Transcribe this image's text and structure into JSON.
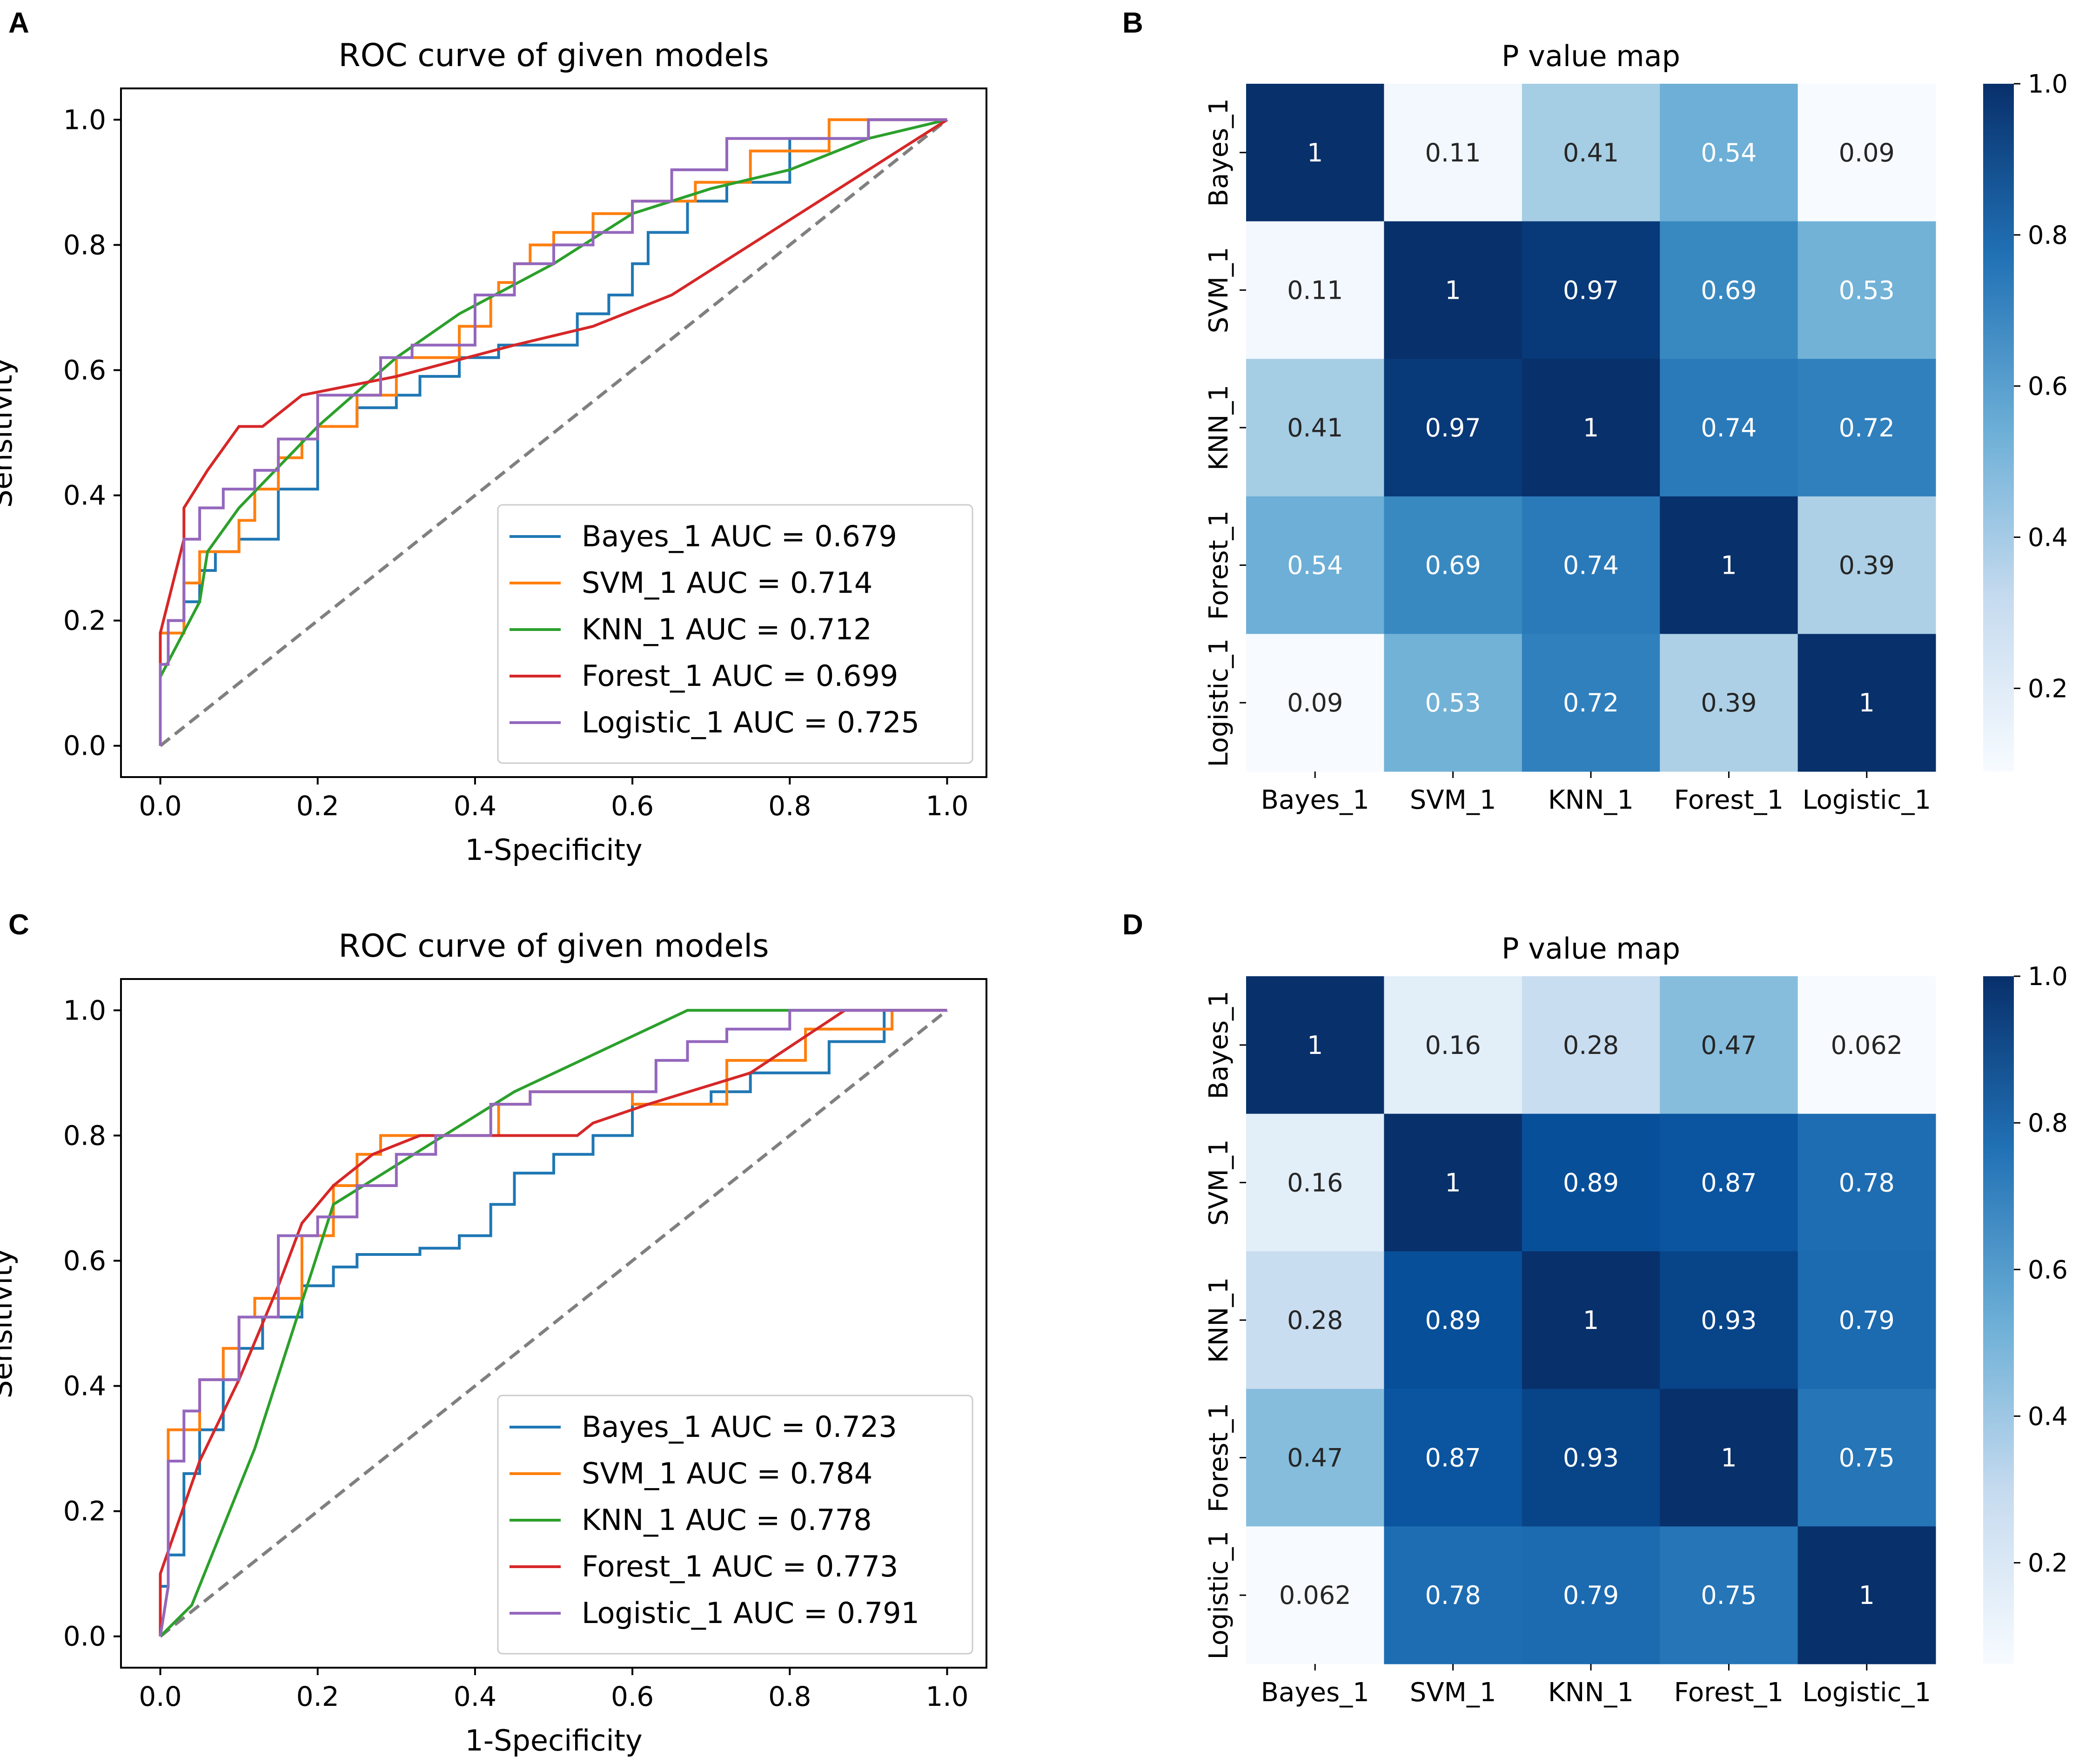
{
  "colors": {
    "Bayes_1": "#1f77b4",
    "SVM_1": "#ff7f0e",
    "KNN_1": "#2ca02c",
    "Forest_1": "#d62728",
    "Logistic_1": "#9467bd",
    "diagonal": "#808080",
    "heat_low": "#f7fbff",
    "heat_mid1": "#c6dbef",
    "heat_mid2": "#6baed6",
    "heat_mid3": "#2171b5",
    "heat_high": "#08306b",
    "text_dark": "#262626",
    "text_light": "#ffffff"
  },
  "chart_data": [
    {
      "panel": "A",
      "type": "line",
      "title": "ROC curve of given models",
      "xlabel": "1-Specificity",
      "ylabel": "Sensitivity",
      "xlim": [
        -0.05,
        1.05
      ],
      "ylim": [
        -0.05,
        1.05
      ],
      "xticks": [
        0.0,
        0.2,
        0.4,
        0.6,
        0.8,
        1.0
      ],
      "yticks": [
        0.0,
        0.2,
        0.4,
        0.6,
        0.8,
        1.0
      ],
      "tick_labels": [
        "0.0",
        "0.2",
        "0.4",
        "0.6",
        "0.8",
        "1.0"
      ],
      "legend_position": "lower-right",
      "grid": false,
      "series": [
        {
          "name": "Bayes_1",
          "label": "Bayes_1 AUC = 0.679",
          "color_key": "Bayes_1",
          "x": [
            0,
            0,
            0.01,
            0.01,
            0.03,
            0.03,
            0.05,
            0.05,
            0.07,
            0.07,
            0.1,
            0.1,
            0.15,
            0.15,
            0.2,
            0.2,
            0.25,
            0.25,
            0.3,
            0.3,
            0.33,
            0.33,
            0.38,
            0.38,
            0.43,
            0.43,
            0.53,
            0.53,
            0.57,
            0.57,
            0.6,
            0.6,
            0.62,
            0.62,
            0.67,
            0.67,
            0.72,
            0.72,
            0.8,
            0.8,
            0.9,
            0.9,
            1.0
          ],
          "y": [
            0,
            0.18,
            0.18,
            0.2,
            0.2,
            0.23,
            0.23,
            0.28,
            0.28,
            0.31,
            0.31,
            0.33,
            0.33,
            0.41,
            0.41,
            0.51,
            0.51,
            0.54,
            0.54,
            0.56,
            0.56,
            0.59,
            0.59,
            0.62,
            0.62,
            0.64,
            0.64,
            0.69,
            0.69,
            0.72,
            0.72,
            0.77,
            0.77,
            0.82,
            0.82,
            0.87,
            0.87,
            0.9,
            0.9,
            0.97,
            0.97,
            1.0,
            1.0
          ]
        },
        {
          "name": "SVM_1",
          "label": "SVM_1 AUC = 0.714",
          "color_key": "SVM_1",
          "x": [
            0,
            0,
            0.03,
            0.03,
            0.05,
            0.05,
            0.1,
            0.1,
            0.12,
            0.12,
            0.15,
            0.15,
            0.18,
            0.18,
            0.2,
            0.2,
            0.25,
            0.25,
            0.3,
            0.3,
            0.38,
            0.38,
            0.42,
            0.42,
            0.43,
            0.43,
            0.45,
            0.45,
            0.47,
            0.47,
            0.5,
            0.5,
            0.55,
            0.55,
            0.6,
            0.6,
            0.68,
            0.68,
            0.75,
            0.75,
            0.85,
            0.85,
            1.0
          ],
          "y": [
            0,
            0.18,
            0.18,
            0.26,
            0.26,
            0.31,
            0.31,
            0.36,
            0.36,
            0.41,
            0.41,
            0.46,
            0.46,
            0.49,
            0.49,
            0.51,
            0.51,
            0.56,
            0.56,
            0.62,
            0.62,
            0.67,
            0.67,
            0.72,
            0.72,
            0.74,
            0.74,
            0.77,
            0.77,
            0.8,
            0.8,
            0.82,
            0.82,
            0.85,
            0.85,
            0.87,
            0.87,
            0.9,
            0.9,
            0.95,
            0.95,
            1.0,
            1.0
          ]
        },
        {
          "name": "KNN_1",
          "label": "KNN_1 AUC = 0.712",
          "color_key": "KNN_1",
          "x": [
            0,
            0,
            0.05,
            0.06,
            0.1,
            0.2,
            0.3,
            0.38,
            0.5,
            0.6,
            0.7,
            0.8,
            0.9,
            1.0
          ],
          "y": [
            0,
            0.11,
            0.23,
            0.31,
            0.38,
            0.51,
            0.62,
            0.69,
            0.77,
            0.85,
            0.89,
            0.92,
            0.97,
            1.0
          ]
        },
        {
          "name": "Forest_1",
          "label": "Forest_1 AUC = 0.699",
          "color_key": "Forest_1",
          "x": [
            0,
            0,
            0.02,
            0.03,
            0.03,
            0.06,
            0.1,
            0.13,
            0.18,
            0.3,
            0.45,
            0.55,
            0.65,
            1.0
          ],
          "y": [
            0,
            0.18,
            0.28,
            0.33,
            0.38,
            0.44,
            0.51,
            0.51,
            0.56,
            0.59,
            0.64,
            0.67,
            0.72,
            1.0
          ]
        },
        {
          "name": "Logistic_1",
          "label": "Logistic_1 AUC = 0.725",
          "color_key": "Logistic_1",
          "x": [
            0,
            0,
            0.01,
            0.01,
            0.03,
            0.03,
            0.05,
            0.05,
            0.08,
            0.08,
            0.12,
            0.12,
            0.15,
            0.15,
            0.2,
            0.2,
            0.28,
            0.28,
            0.32,
            0.32,
            0.4,
            0.4,
            0.45,
            0.45,
            0.5,
            0.5,
            0.55,
            0.55,
            0.6,
            0.6,
            0.65,
            0.65,
            0.72,
            0.72,
            0.9,
            0.9,
            1.0
          ],
          "y": [
            0,
            0.13,
            0.13,
            0.2,
            0.2,
            0.33,
            0.33,
            0.38,
            0.38,
            0.41,
            0.41,
            0.44,
            0.44,
            0.49,
            0.49,
            0.56,
            0.56,
            0.62,
            0.62,
            0.64,
            0.64,
            0.72,
            0.72,
            0.77,
            0.77,
            0.8,
            0.8,
            0.82,
            0.82,
            0.87,
            0.87,
            0.92,
            0.92,
            0.97,
            0.97,
            1.0,
            1.0
          ]
        }
      ],
      "reference_line": {
        "x": [
          0,
          1
        ],
        "y": [
          0,
          1
        ],
        "style": "dashed"
      }
    },
    {
      "panel": "B",
      "type": "heatmap",
      "title": "P value map",
      "labels": [
        "Bayes_1",
        "SVM_1",
        "KNN_1",
        "Forest_1",
        "Logistic_1"
      ],
      "values": [
        [
          1,
          0.11,
          0.41,
          0.54,
          0.09
        ],
        [
          0.11,
          1,
          0.97,
          0.69,
          0.53
        ],
        [
          0.41,
          0.97,
          1,
          0.74,
          0.72
        ],
        [
          0.54,
          0.69,
          0.74,
          1,
          0.39
        ],
        [
          0.09,
          0.53,
          0.72,
          0.39,
          1
        ]
      ],
      "value_labels": [
        [
          "1",
          "0.11",
          "0.41",
          "0.54",
          "0.09"
        ],
        [
          "0.11",
          "1",
          "0.97",
          "0.69",
          "0.53"
        ],
        [
          "0.41",
          "0.97",
          "1",
          "0.74",
          "0.72"
        ],
        [
          "0.54",
          "0.69",
          "0.74",
          "1",
          "0.39"
        ],
        [
          "0.09",
          "0.53",
          "0.72",
          "0.39",
          "1"
        ]
      ],
      "colorbar_range": [
        0.09,
        1.0
      ],
      "colorbar_ticks": [
        0.2,
        0.4,
        0.6,
        0.8,
        1.0
      ],
      "colorbar_tick_labels": [
        "0.2",
        "0.4",
        "0.6",
        "0.8",
        "1.0"
      ],
      "colormap": "Blues"
    },
    {
      "panel": "C",
      "type": "line",
      "title": "ROC curve of given models",
      "xlabel": "1-Specificity",
      "ylabel": "Sensitivity",
      "xlim": [
        -0.05,
        1.05
      ],
      "ylim": [
        -0.05,
        1.05
      ],
      "xticks": [
        0.0,
        0.2,
        0.4,
        0.6,
        0.8,
        1.0
      ],
      "yticks": [
        0.0,
        0.2,
        0.4,
        0.6,
        0.8,
        1.0
      ],
      "tick_labels": [
        "0.0",
        "0.2",
        "0.4",
        "0.6",
        "0.8",
        "1.0"
      ],
      "legend_position": "lower-right",
      "grid": false,
      "series": [
        {
          "name": "Bayes_1",
          "label": "Bayes_1 AUC = 0.723",
          "color_key": "Bayes_1",
          "x": [
            0,
            0,
            0.01,
            0.01,
            0.03,
            0.03,
            0.05,
            0.05,
            0.08,
            0.08,
            0.1,
            0.1,
            0.13,
            0.13,
            0.18,
            0.18,
            0.22,
            0.22,
            0.25,
            0.25,
            0.33,
            0.33,
            0.38,
            0.38,
            0.42,
            0.42,
            0.45,
            0.45,
            0.5,
            0.5,
            0.55,
            0.55,
            0.6,
            0.6,
            0.7,
            0.7,
            0.75,
            0.75,
            0.85,
            0.85,
            0.92,
            0.92,
            1.0
          ],
          "y": [
            0,
            0.08,
            0.08,
            0.13,
            0.13,
            0.26,
            0.26,
            0.33,
            0.33,
            0.41,
            0.41,
            0.46,
            0.46,
            0.51,
            0.51,
            0.56,
            0.56,
            0.59,
            0.59,
            0.61,
            0.61,
            0.62,
            0.62,
            0.64,
            0.64,
            0.69,
            0.69,
            0.74,
            0.74,
            0.77,
            0.77,
            0.8,
            0.8,
            0.85,
            0.85,
            0.87,
            0.87,
            0.9,
            0.9,
            0.95,
            0.95,
            1.0,
            1.0
          ]
        },
        {
          "name": "SVM_1",
          "label": "SVM_1 AUC = 0.784",
          "color_key": "SVM_1",
          "x": [
            0,
            0.01,
            0.01,
            0.05,
            0.05,
            0.08,
            0.08,
            0.1,
            0.1,
            0.12,
            0.12,
            0.18,
            0.18,
            0.22,
            0.22,
            0.25,
            0.25,
            0.28,
            0.28,
            0.43,
            0.43,
            0.47,
            0.47,
            0.6,
            0.6,
            0.72,
            0.72,
            0.82,
            0.82,
            0.93,
            0.93,
            1.0
          ],
          "y": [
            0,
            0.08,
            0.33,
            0.33,
            0.41,
            0.41,
            0.46,
            0.46,
            0.51,
            0.51,
            0.54,
            0.54,
            0.64,
            0.64,
            0.72,
            0.72,
            0.77,
            0.77,
            0.8,
            0.8,
            0.85,
            0.85,
            0.87,
            0.87,
            0.85,
            0.85,
            0.92,
            0.92,
            0.97,
            0.97,
            1.0,
            1.0
          ]
        },
        {
          "name": "KNN_1",
          "label": "KNN_1 AUC = 0.778",
          "color_key": "KNN_1",
          "x": [
            0,
            0.04,
            0.12,
            0.22,
            0.45,
            0.67,
            1.0
          ],
          "y": [
            0,
            0.05,
            0.3,
            0.69,
            0.87,
            1.0,
            1.0
          ]
        },
        {
          "name": "Forest_1",
          "label": "Forest_1 AUC = 0.773",
          "color_key": "Forest_1",
          "x": [
            0,
            0,
            0.05,
            0.1,
            0.15,
            0.18,
            0.22,
            0.27,
            0.33,
            0.53,
            0.55,
            0.62,
            0.75,
            0.87,
            1.0
          ],
          "y": [
            0,
            0.1,
            0.28,
            0.41,
            0.56,
            0.66,
            0.72,
            0.77,
            0.8,
            0.8,
            0.82,
            0.85,
            0.9,
            1.0,
            1.0
          ]
        },
        {
          "name": "Logistic_1",
          "label": "Logistic_1 AUC = 0.791",
          "color_key": "Logistic_1",
          "x": [
            0,
            0.01,
            0.01,
            0.03,
            0.03,
            0.05,
            0.05,
            0.1,
            0.1,
            0.15,
            0.15,
            0.2,
            0.2,
            0.25,
            0.25,
            0.3,
            0.3,
            0.35,
            0.35,
            0.42,
            0.42,
            0.47,
            0.47,
            0.63,
            0.63,
            0.67,
            0.67,
            0.72,
            0.72,
            0.8,
            0.8,
            1.0
          ],
          "y": [
            0,
            0.08,
            0.28,
            0.28,
            0.36,
            0.36,
            0.41,
            0.41,
            0.51,
            0.51,
            0.64,
            0.64,
            0.67,
            0.67,
            0.72,
            0.72,
            0.77,
            0.77,
            0.8,
            0.8,
            0.85,
            0.85,
            0.87,
            0.87,
            0.92,
            0.92,
            0.95,
            0.95,
            0.97,
            0.97,
            1.0,
            1.0
          ]
        }
      ],
      "reference_line": {
        "x": [
          0,
          1
        ],
        "y": [
          0,
          1
        ],
        "style": "dashed"
      }
    },
    {
      "panel": "D",
      "type": "heatmap",
      "title": "P value map",
      "labels": [
        "Bayes_1",
        "SVM_1",
        "KNN_1",
        "Forest_1",
        "Logistic_1"
      ],
      "values": [
        [
          1,
          0.16,
          0.28,
          0.47,
          0.062
        ],
        [
          0.16,
          1,
          0.89,
          0.87,
          0.78
        ],
        [
          0.28,
          0.89,
          1,
          0.93,
          0.79
        ],
        [
          0.47,
          0.87,
          0.93,
          1,
          0.75
        ],
        [
          0.062,
          0.78,
          0.79,
          0.75,
          1
        ]
      ],
      "value_labels": [
        [
          "1",
          "0.16",
          "0.28",
          "0.47",
          "0.062"
        ],
        [
          "0.16",
          "1",
          "0.89",
          "0.87",
          "0.78"
        ],
        [
          "0.28",
          "0.89",
          "1",
          "0.93",
          "0.79"
        ],
        [
          "0.47",
          "0.87",
          "0.93",
          "1",
          "0.75"
        ],
        [
          "0.062",
          "0.78",
          "0.79",
          "0.75",
          "1"
        ]
      ],
      "colorbar_range": [
        0.062,
        1.0
      ],
      "colorbar_ticks": [
        0.2,
        0.4,
        0.6,
        0.8,
        1.0
      ],
      "colorbar_tick_labels": [
        "0.2",
        "0.4",
        "0.6",
        "0.8",
        "1.0"
      ],
      "colormap": "Blues"
    }
  ]
}
